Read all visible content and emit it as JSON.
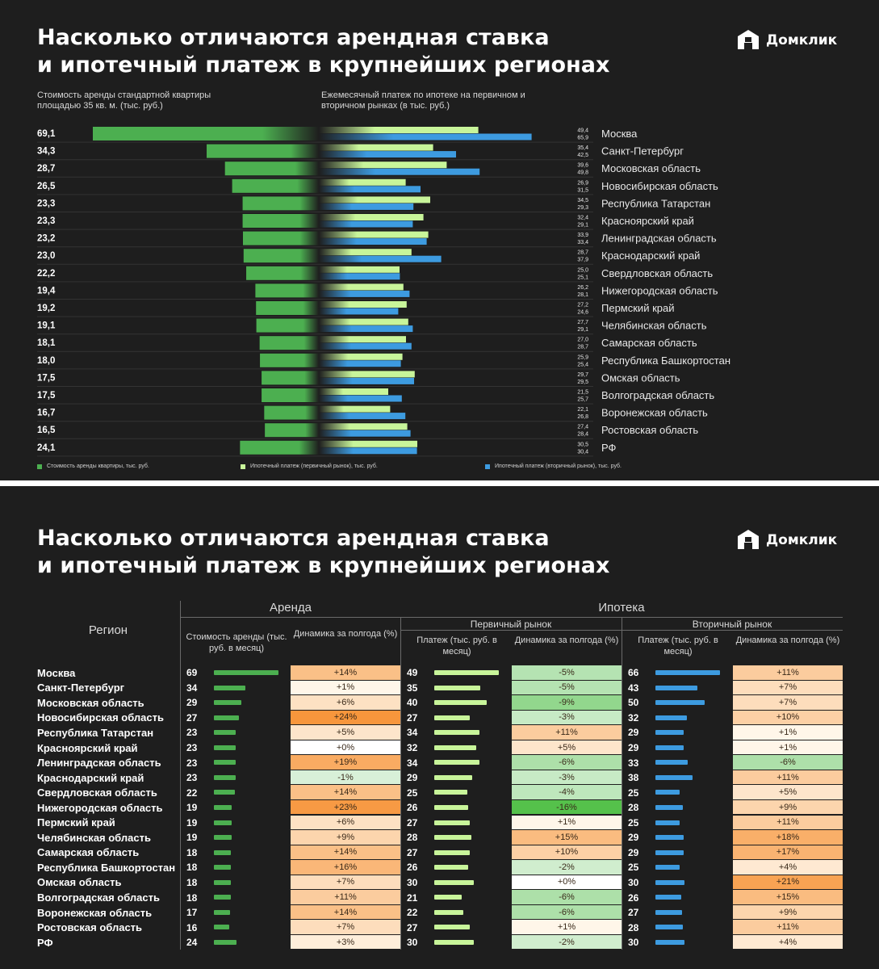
{
  "brand": {
    "name": "Домклик"
  },
  "colors": {
    "rent": "#4caf50",
    "primary": "#c8f59a",
    "secondary": "#3d9be0",
    "background": "#1e1e1e"
  },
  "panel1": {
    "title_line1": "Насколько отличаются арендная ставка",
    "title_line2": "и ипотечный платеж в крупнейших регионах",
    "subtitle_left": "Стоимость аренды стандартной квартиры площадью 35 кв. м. (тыс. руб.)",
    "subtitle_right": "Ежемесячный платеж по ипотеке на первичном и вторичном рынках (в тыс. руб.)",
    "legend": {
      "rent": "Стоимость аренды квартиры, тыс. руб.",
      "primary": "Ипотечный платеж (первичный рынок), тыс. руб.",
      "secondary": "Ипотечный платеж (вторичный рынок), тыс. руб."
    }
  },
  "chart_data": {
    "type": "bar",
    "categories": [
      "Москва",
      "Санкт-Петербург",
      "Московская область",
      "Новосибирская область",
      "Республика Татарстан",
      "Красноярский край",
      "Ленинградская область",
      "Краснодарский край",
      "Свердловская область",
      "Нижегородская область",
      "Пермский край",
      "Челябинская область",
      "Самарская область",
      "Республика Башкортостан",
      "Омская область",
      "Волгоградская область",
      "Воронежская область",
      "Ростовская область",
      "РФ"
    ],
    "series": [
      {
        "name": "Стоимость аренды квартиры, тыс. руб.",
        "labels": [
          "69,1",
          "34,3",
          "28,7",
          "26,5",
          "23,3",
          "23,3",
          "23,2",
          "23,0",
          "22,2",
          "19,4",
          "19,2",
          "19,1",
          "18,1",
          "18,0",
          "17,5",
          "17,5",
          "16,7",
          "16,5",
          "24,1"
        ],
        "values": [
          69.1,
          34.3,
          28.7,
          26.5,
          23.3,
          23.3,
          23.2,
          23.0,
          22.2,
          19.4,
          19.2,
          19.1,
          18.1,
          18.0,
          17.5,
          17.5,
          16.7,
          16.5,
          24.1
        ]
      },
      {
        "name": "Ипотечный платеж (первичный рынок), тыс. руб.",
        "labels": [
          "49,4",
          "35,4",
          "39,6",
          "26,9",
          "34,5",
          "32,4",
          "33,9",
          "28,7",
          "25,0",
          "26,2",
          "27,2",
          "27,7",
          "27,0",
          "25,9",
          "29,7",
          "21,5",
          "22,1",
          "27,4",
          "30,5"
        ],
        "values": [
          49.4,
          35.4,
          39.6,
          26.9,
          34.5,
          32.4,
          33.9,
          28.7,
          25.0,
          26.2,
          27.2,
          27.7,
          27.0,
          25.9,
          29.7,
          21.5,
          22.1,
          27.4,
          30.5
        ]
      },
      {
        "name": "Ипотечный платеж (вторичный рынок), тыс. руб.",
        "labels": [
          "65,9",
          "42,5",
          "49,8",
          "31,5",
          "29,3",
          "29,1",
          "33,4",
          "37,9",
          "25,1",
          "28,1",
          "24,6",
          "29,1",
          "28,7",
          "25,4",
          "29,5",
          "25,7",
          "26,8",
          "28,4",
          "30,4"
        ],
        "values": [
          65.9,
          42.5,
          49.8,
          31.5,
          29.3,
          29.1,
          33.4,
          37.9,
          25.1,
          28.1,
          24.6,
          29.1,
          28.7,
          25.4,
          29.5,
          25.7,
          26.8,
          28.4,
          30.4
        ]
      }
    ]
  },
  "panel2": {
    "title_line1": "Насколько отличаются арендная ставка",
    "title_line2": "и ипотечный платеж в крупнейших регионах",
    "headers": {
      "region": "Регион",
      "rent": "Аренда",
      "mortgage": "Ипотека",
      "primary": "Первичный рынок",
      "secondary": "Вторичный рынок",
      "rent_cost": "Стоимость аренды (тыс. руб. в месяц)",
      "payment": "Платеж (тыс. руб. в месяц)",
      "dynamics": "Динамика за полгода (%)"
    },
    "rows": [
      {
        "region": "Москва",
        "rent": "69",
        "rent_dyn": "+14%",
        "prim": "49",
        "prim_dyn": "-5%",
        "sec": "66",
        "sec_dyn": "+11%"
      },
      {
        "region": "Санкт-Петербург",
        "rent": "34",
        "rent_dyn": "+1%",
        "prim": "35",
        "prim_dyn": "-5%",
        "sec": "43",
        "sec_dyn": "+7%"
      },
      {
        "region": "Московская область",
        "rent": "29",
        "rent_dyn": "+6%",
        "prim": "40",
        "prim_dyn": "-9%",
        "sec": "50",
        "sec_dyn": "+7%"
      },
      {
        "region": "Новосибирская область",
        "rent": "27",
        "rent_dyn": "+24%",
        "prim": "27",
        "prim_dyn": "-3%",
        "sec": "32",
        "sec_dyn": "+10%"
      },
      {
        "region": "Республика Татарстан",
        "rent": "23",
        "rent_dyn": "+5%",
        "prim": "34",
        "prim_dyn": "+11%",
        "sec": "29",
        "sec_dyn": "+1%"
      },
      {
        "region": "Красноярский край",
        "rent": "23",
        "rent_dyn": "+0%",
        "prim": "32",
        "prim_dyn": "+5%",
        "sec": "29",
        "sec_dyn": "+1%"
      },
      {
        "region": "Ленинградская область",
        "rent": "23",
        "rent_dyn": "+19%",
        "prim": "34",
        "prim_dyn": "-6%",
        "sec": "33",
        "sec_dyn": "-6%"
      },
      {
        "region": "Краснодарский край",
        "rent": "23",
        "rent_dyn": "-1%",
        "prim": "29",
        "prim_dyn": "-3%",
        "sec": "38",
        "sec_dyn": "+11%"
      },
      {
        "region": "Свердловская область",
        "rent": "22",
        "rent_dyn": "+14%",
        "prim": "25",
        "prim_dyn": "-4%",
        "sec": "25",
        "sec_dyn": "+5%"
      },
      {
        "region": "Нижегородская область",
        "rent": "19",
        "rent_dyn": "+23%",
        "prim": "26",
        "prim_dyn": "-16%",
        "sec": "28",
        "sec_dyn": "+9%"
      },
      {
        "region": "Пермский край",
        "rent": "19",
        "rent_dyn": "+6%",
        "prim": "27",
        "prim_dyn": "+1%",
        "sec": "25",
        "sec_dyn": "+11%"
      },
      {
        "region": "Челябинская область",
        "rent": "19",
        "rent_dyn": "+9%",
        "prim": "28",
        "prim_dyn": "+15%",
        "sec": "29",
        "sec_dyn": "+18%"
      },
      {
        "region": "Самарская область",
        "rent": "18",
        "rent_dyn": "+14%",
        "prim": "27",
        "prim_dyn": "+10%",
        "sec": "29",
        "sec_dyn": "+17%"
      },
      {
        "region": "Республика Башкортостан",
        "rent": "18",
        "rent_dyn": "+16%",
        "prim": "26",
        "prim_dyn": "-2%",
        "sec": "25",
        "sec_dyn": "+4%"
      },
      {
        "region": "Омская область",
        "rent": "18",
        "rent_dyn": "+7%",
        "prim": "30",
        "prim_dyn": "+0%",
        "sec": "30",
        "sec_dyn": "+21%"
      },
      {
        "region": "Волгоградская область",
        "rent": "18",
        "rent_dyn": "+11%",
        "prim": "21",
        "prim_dyn": "-6%",
        "sec": "26",
        "sec_dyn": "+15%"
      },
      {
        "region": "Воронежская область",
        "rent": "17",
        "rent_dyn": "+14%",
        "prim": "22",
        "prim_dyn": "-6%",
        "sec": "27",
        "sec_dyn": "+9%"
      },
      {
        "region": "Ростовская область",
        "rent": "16",
        "rent_dyn": "+7%",
        "prim": "27",
        "prim_dyn": "+1%",
        "sec": "28",
        "sec_dyn": "+11%"
      },
      {
        "region": "РФ",
        "rent": "24",
        "rent_dyn": "+3%",
        "prim": "30",
        "prim_dyn": "-2%",
        "sec": "30",
        "sec_dyn": "+4%"
      }
    ]
  }
}
